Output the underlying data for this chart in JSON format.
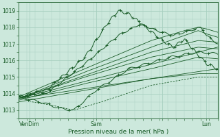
{
  "xlabel": "Pression niveau de la mer( hPa )",
  "bg_color": "#cce8dc",
  "grid_color": "#a8cfc0",
  "line_color": "#1a5c28",
  "ylim": [
    1012.5,
    1019.5
  ],
  "xlim": [
    0,
    72
  ],
  "xtick_positions": [
    4,
    28,
    52,
    68
  ],
  "xtick_labels": [
    "VenDim",
    "Sam",
    "",
    "Lun"
  ],
  "ytick_positions": [
    1013,
    1014,
    1015,
    1016,
    1017,
    1018,
    1019
  ],
  "ytick_labels": [
    "1013",
    "1014",
    "1015",
    "1016",
    "1017",
    "1018",
    "1019"
  ],
  "figsize": [
    3.2,
    2.0
  ],
  "dpi": 100
}
